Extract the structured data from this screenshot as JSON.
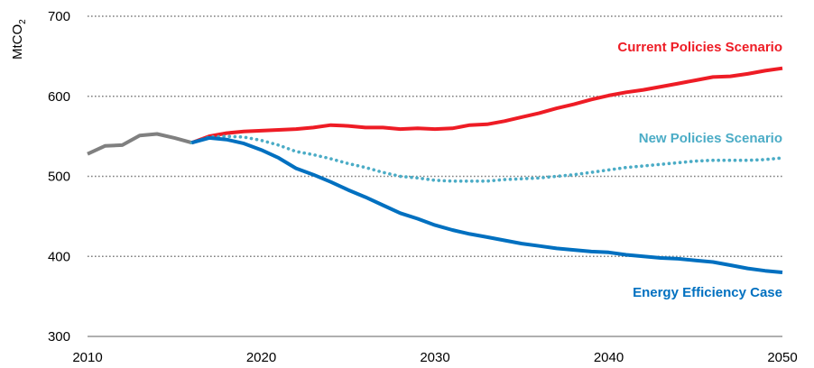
{
  "chart_data": {
    "type": "line",
    "ylabel": "MtCO",
    "ylabel_subscript": "2",
    "xlim": [
      2010,
      2050
    ],
    "ylim": [
      300,
      700
    ],
    "x_ticks": [
      "2010",
      "2020",
      "2030",
      "2040",
      "2050"
    ],
    "y_ticks": [
      "300",
      "400",
      "500",
      "600",
      "700"
    ],
    "grid": "horizontal dotted",
    "series": [
      {
        "name": "",
        "color": "#808080",
        "style": "solid",
        "points": [
          [
            2010,
            528
          ],
          [
            2011,
            538
          ],
          [
            2012,
            539
          ],
          [
            2013,
            551
          ],
          [
            2014,
            553
          ],
          [
            2015,
            548
          ],
          [
            2016,
            542
          ]
        ]
      },
      {
        "name": "Current Policies Scenario",
        "color": "#ee1c25",
        "style": "solid",
        "points": [
          [
            2016,
            542
          ],
          [
            2017,
            550
          ],
          [
            2018,
            554
          ],
          [
            2019,
            556
          ],
          [
            2020,
            557
          ],
          [
            2021,
            558
          ],
          [
            2022,
            559
          ],
          [
            2023,
            561
          ],
          [
            2024,
            564
          ],
          [
            2025,
            563
          ],
          [
            2026,
            561
          ],
          [
            2027,
            561
          ],
          [
            2028,
            559
          ],
          [
            2029,
            560
          ],
          [
            2030,
            559
          ],
          [
            2031,
            560
          ],
          [
            2032,
            564
          ],
          [
            2033,
            565
          ],
          [
            2034,
            569
          ],
          [
            2035,
            574
          ],
          [
            2036,
            579
          ],
          [
            2037,
            585
          ],
          [
            2038,
            590
          ],
          [
            2039,
            596
          ],
          [
            2040,
            601
          ],
          [
            2041,
            605
          ],
          [
            2042,
            608
          ],
          [
            2043,
            612
          ],
          [
            2044,
            616
          ],
          [
            2045,
            620
          ],
          [
            2046,
            624
          ],
          [
            2047,
            625
          ],
          [
            2048,
            628
          ],
          [
            2049,
            632
          ],
          [
            2050,
            635
          ]
        ]
      },
      {
        "name": "New Policies Scenario",
        "color": "#4bacc6",
        "style": "dotted",
        "points": [
          [
            2016,
            542
          ],
          [
            2017,
            549
          ],
          [
            2018,
            550
          ],
          [
            2019,
            549
          ],
          [
            2020,
            545
          ],
          [
            2021,
            539
          ],
          [
            2022,
            531
          ],
          [
            2023,
            527
          ],
          [
            2024,
            522
          ],
          [
            2025,
            516
          ],
          [
            2026,
            511
          ],
          [
            2027,
            505
          ],
          [
            2028,
            500
          ],
          [
            2029,
            498
          ],
          [
            2030,
            495
          ],
          [
            2031,
            494
          ],
          [
            2032,
            494
          ],
          [
            2033,
            494
          ],
          [
            2034,
            496
          ],
          [
            2035,
            497
          ],
          [
            2036,
            498
          ],
          [
            2037,
            500
          ],
          [
            2038,
            502
          ],
          [
            2039,
            505
          ],
          [
            2040,
            508
          ],
          [
            2041,
            511
          ],
          [
            2042,
            513
          ],
          [
            2043,
            515
          ],
          [
            2044,
            517
          ],
          [
            2045,
            519
          ],
          [
            2046,
            520
          ],
          [
            2047,
            520
          ],
          [
            2048,
            520
          ],
          [
            2049,
            521
          ],
          [
            2050,
            523
          ]
        ]
      },
      {
        "name": "Energy Efficiency Case",
        "color": "#0070c0",
        "style": "solid",
        "points": [
          [
            2016,
            542
          ],
          [
            2017,
            548
          ],
          [
            2018,
            546
          ],
          [
            2019,
            541
          ],
          [
            2020,
            533
          ],
          [
            2021,
            523
          ],
          [
            2022,
            510
          ],
          [
            2023,
            502
          ],
          [
            2024,
            493
          ],
          [
            2025,
            483
          ],
          [
            2026,
            474
          ],
          [
            2027,
            464
          ],
          [
            2028,
            454
          ],
          [
            2029,
            447
          ],
          [
            2030,
            439
          ],
          [
            2031,
            433
          ],
          [
            2032,
            428
          ],
          [
            2033,
            424
          ],
          [
            2034,
            420
          ],
          [
            2035,
            416
          ],
          [
            2036,
            413
          ],
          [
            2037,
            410
          ],
          [
            2038,
            408
          ],
          [
            2039,
            406
          ],
          [
            2040,
            405
          ],
          [
            2041,
            402
          ],
          [
            2042,
            400
          ],
          [
            2043,
            398
          ],
          [
            2044,
            397
          ],
          [
            2045,
            395
          ],
          [
            2046,
            393
          ],
          [
            2047,
            389
          ],
          [
            2048,
            385
          ],
          [
            2049,
            382
          ],
          [
            2050,
            380
          ]
        ]
      }
    ]
  }
}
